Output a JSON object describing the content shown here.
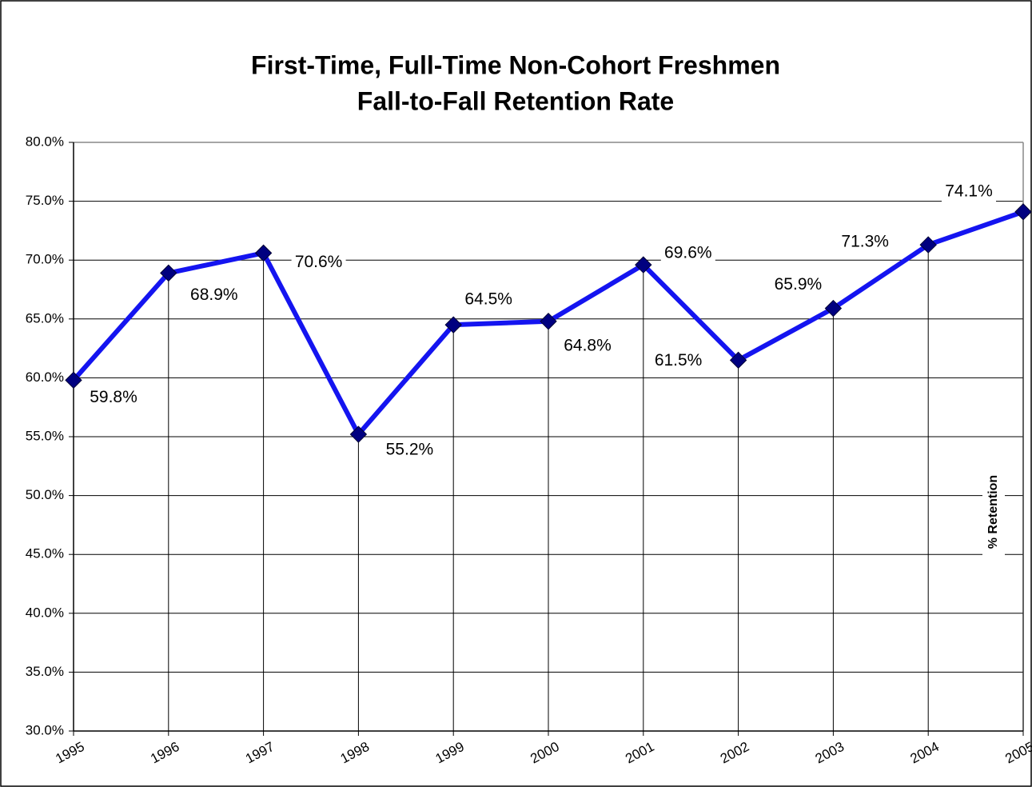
{
  "chart_data": {
    "type": "line",
    "title": "First-Time, Full-Time Non-Cohort Freshmen",
    "subtitle": "Fall-to-Fall Retention Rate",
    "categories": [
      "1995",
      "1996",
      "1997",
      "1998",
      "1999",
      "2000",
      "2001",
      "2002",
      "2003",
      "2004",
      "2005"
    ],
    "series": [
      {
        "name": "% Retention",
        "color": "#1414f0",
        "marker_color": "#000080",
        "values": [
          59.8,
          68.9,
          70.6,
          55.2,
          64.5,
          64.8,
          69.6,
          61.5,
          65.9,
          71.3,
          74.1
        ],
        "value_labels": [
          "59.8%",
          "68.9%",
          "70.6%",
          "55.2%",
          "64.5%",
          "64.8%",
          "69.6%",
          "61.5%",
          "65.9%",
          "71.3%",
          "74.1%"
        ]
      }
    ],
    "ylim": [
      30,
      80
    ],
    "yticks": [
      {
        "value": 30,
        "label": "30.0%"
      },
      {
        "value": 35,
        "label": "35.0%"
      },
      {
        "value": 40,
        "label": "40.0%"
      },
      {
        "value": 45,
        "label": "45.0%"
      },
      {
        "value": 50,
        "label": "50.0%"
      },
      {
        "value": 55,
        "label": "55.0%"
      },
      {
        "value": 60,
        "label": "60.0%"
      },
      {
        "value": 65,
        "label": "65.0%"
      },
      {
        "value": 70,
        "label": "70.0%"
      },
      {
        "value": 75,
        "label": "75.0%"
      },
      {
        "value": 80,
        "label": "80.0%"
      }
    ],
    "grid": true,
    "legend": "right"
  }
}
